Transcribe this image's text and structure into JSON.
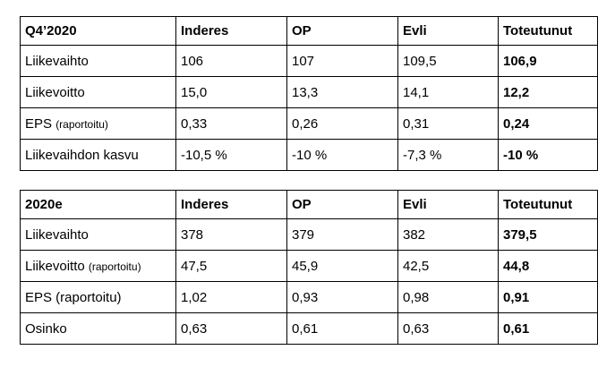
{
  "tables": [
    {
      "header": [
        "Q4’2020",
        "Inderes",
        "OP",
        "Evli",
        "Toteutunut"
      ],
      "rows": [
        [
          "Liikevaihto",
          "106",
          "107",
          "109,5",
          "106,9"
        ],
        [
          "Liikevoitto",
          "15,0",
          "13,3",
          "14,1",
          "12,2"
        ],
        [
          {
            "text": "EPS",
            "note": "(raportoitu)"
          },
          "0,33",
          "0,26",
          "0,31",
          "0,24"
        ],
        [
          "Liikevaihdon kasvu",
          "-10,5 %",
          "-10 %",
          "-7,3 %",
          "-10 %"
        ]
      ]
    },
    {
      "header": [
        "2020e",
        "Inderes",
        "OP",
        "Evli",
        "Toteutunut"
      ],
      "rows": [
        [
          "Liikevaihto",
          "378",
          "379",
          "382",
          "379,5"
        ],
        [
          {
            "text": "Liikevoitto",
            "note": "(raportoitu)"
          },
          "47,5",
          "45,9",
          "42,5",
          "44,8"
        ],
        [
          "EPS (raportoitu)",
          "1,02",
          "0,93",
          "0,98",
          "0,91"
        ],
        [
          "Osinko",
          "0,63",
          "0,61",
          "0,63",
          "0,61"
        ]
      ]
    }
  ]
}
